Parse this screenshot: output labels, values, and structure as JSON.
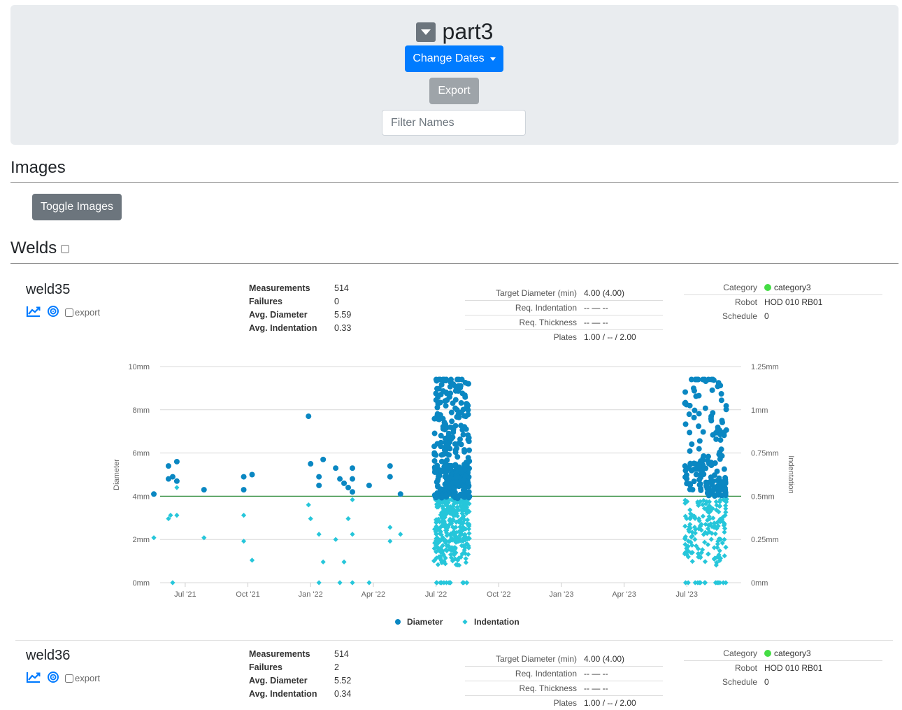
{
  "header": {
    "title": "part3",
    "change_dates_label": "Change Dates",
    "export_label": "Export",
    "filter_placeholder": "Filter Names"
  },
  "images_section": {
    "title": "Images",
    "toggle_label": "Toggle Images"
  },
  "welds_section": {
    "title": "Welds"
  },
  "colors": {
    "primary": "#007bff",
    "secondary": "#6c757d",
    "diameter_series": "#0a87c2",
    "indentation_series": "#26c6da",
    "target_line": "#2e8b3a",
    "category_dot": "#44dd44"
  },
  "welds": [
    {
      "name": "weld35",
      "icons": [
        "chart-line-icon",
        "target-icon"
      ],
      "export_label": "export",
      "stats": [
        {
          "label": "Measurements",
          "value": "514"
        },
        {
          "label": "Failures",
          "value": "0"
        },
        {
          "label": "Avg. Diameter",
          "value": "5.59"
        },
        {
          "label": "Avg. Indentation",
          "value": "0.33"
        }
      ],
      "spec": [
        {
          "label": "Target Diameter (min)",
          "value": "4.00 (4.00)"
        },
        {
          "label": "Req. Indentation",
          "value": "-- — --"
        },
        {
          "label": "Req. Thickness",
          "value": "-- — --"
        },
        {
          "label": "Plates",
          "value": "1.00 / -- / 2.00"
        }
      ],
      "meta": {
        "category_label": "Category",
        "category_value": "category3",
        "robot_label": "Robot",
        "robot_value": "HOD 010 RB01",
        "schedule_label": "Schedule",
        "schedule_value": "0"
      }
    },
    {
      "name": "weld36",
      "icons": [
        "chart-line-icon",
        "target-icon"
      ],
      "export_label": "export",
      "stats": [
        {
          "label": "Measurements",
          "value": "514"
        },
        {
          "label": "Failures",
          "value": "2"
        },
        {
          "label": "Avg. Diameter",
          "value": "5.52"
        },
        {
          "label": "Avg. Indentation",
          "value": "0.34"
        }
      ],
      "spec": [
        {
          "label": "Target Diameter (min)",
          "value": "4.00 (4.00)"
        },
        {
          "label": "Req. Indentation",
          "value": "-- — --"
        },
        {
          "label": "Req. Thickness",
          "value": "-- — --"
        },
        {
          "label": "Plates",
          "value": "1.00 / -- / 2.00"
        }
      ],
      "meta": {
        "category_label": "Category",
        "category_value": "category3",
        "robot_label": "Robot",
        "robot_value": "HOD 010 RB01",
        "schedule_label": "Schedule",
        "schedule_value": "0"
      }
    }
  ],
  "chart_data": {
    "type": "scatter",
    "title": "",
    "ylabel": "Diameter",
    "y2label": "Indentation",
    "x_ticks": [
      "Jul '21",
      "Oct '21",
      "Jan '22",
      "Apr '22",
      "Jul '22",
      "Oct '22",
      "Jan '23",
      "Apr '23",
      "Jul '23"
    ],
    "x_range_months": [
      -1.2,
      26.6
    ],
    "y_ticks": [
      "0mm",
      "2mm",
      "4mm",
      "6mm",
      "8mm",
      "10mm"
    ],
    "y2_ticks": [
      "0mm",
      "0.25mm",
      "0.5mm",
      "0.75mm",
      "1mm",
      "1.25mm"
    ],
    "ylim": [
      0,
      10
    ],
    "y2lim": [
      0,
      1.25
    ],
    "target_line": 4,
    "grid": true,
    "legend_position": "bottom",
    "series": [
      {
        "name": "Diameter",
        "marker": "circle",
        "points": [
          [
            -1.5,
            4.1
          ],
          [
            -0.8,
            5.4
          ],
          [
            -0.8,
            4.8
          ],
          [
            -0.6,
            4.9
          ],
          [
            -0.4,
            5.6
          ],
          [
            -0.4,
            4.7
          ],
          [
            0.9,
            4.3
          ],
          [
            2.8,
            4.9
          ],
          [
            2.8,
            4.3
          ],
          [
            3.2,
            5.0
          ],
          [
            5.9,
            7.7
          ],
          [
            6.0,
            5.5
          ],
          [
            6.4,
            4.9
          ],
          [
            6.4,
            4.5
          ],
          [
            6.6,
            5.7
          ],
          [
            7.2,
            5.3
          ],
          [
            7.4,
            4.8
          ],
          [
            7.6,
            4.6
          ],
          [
            7.8,
            4.4
          ],
          [
            8.0,
            4.2
          ],
          [
            8.0,
            4.8
          ],
          [
            8.0,
            5.3
          ],
          [
            8.8,
            4.5
          ],
          [
            9.8,
            5.4
          ],
          [
            9.8,
            4.9
          ],
          [
            10.3,
            4.1
          ]
        ],
        "clusters": [
          {
            "x_range": [
              11.9,
              13.6
            ],
            "y_range": [
              3.9,
              9.4
            ],
            "count": 320
          },
          {
            "x_range": [
              23.9,
              25.9
            ],
            "y_range": [
              4.0,
              9.4
            ],
            "count": 160
          }
        ]
      },
      {
        "name": "Indentation",
        "marker": "diamond",
        "points": [
          [
            -1.5,
            0.26
          ],
          [
            -0.8,
            0.37
          ],
          [
            -0.7,
            0.39
          ],
          [
            -0.4,
            0.39
          ],
          [
            -0.6,
            0.0
          ],
          [
            -0.4,
            0.55
          ],
          [
            0.9,
            0.26
          ],
          [
            2.8,
            0.39
          ],
          [
            2.8,
            0.24
          ],
          [
            3.2,
            0.13
          ],
          [
            5.9,
            0.45
          ],
          [
            6.0,
            0.37
          ],
          [
            6.4,
            0.28
          ],
          [
            6.4,
            0.0
          ],
          [
            6.6,
            0.12
          ],
          [
            7.2,
            0.25
          ],
          [
            7.4,
            0.0
          ],
          [
            7.6,
            0.12
          ],
          [
            7.8,
            0.37
          ],
          [
            8.0,
            0.28
          ],
          [
            8.0,
            0.48
          ],
          [
            8.0,
            0.0
          ],
          [
            8.8,
            0.0
          ],
          [
            9.8,
            0.32
          ],
          [
            9.8,
            0.24
          ],
          [
            10.3,
            0.28
          ]
        ],
        "clusters": [
          {
            "x_range": [
              11.9,
              13.6
            ],
            "y_range": [
              0.1,
              0.49
            ],
            "count": 320
          },
          {
            "x_range": [
              23.9,
              25.9
            ],
            "y_range": [
              0.1,
              0.49
            ],
            "count": 160
          }
        ]
      }
    ]
  }
}
